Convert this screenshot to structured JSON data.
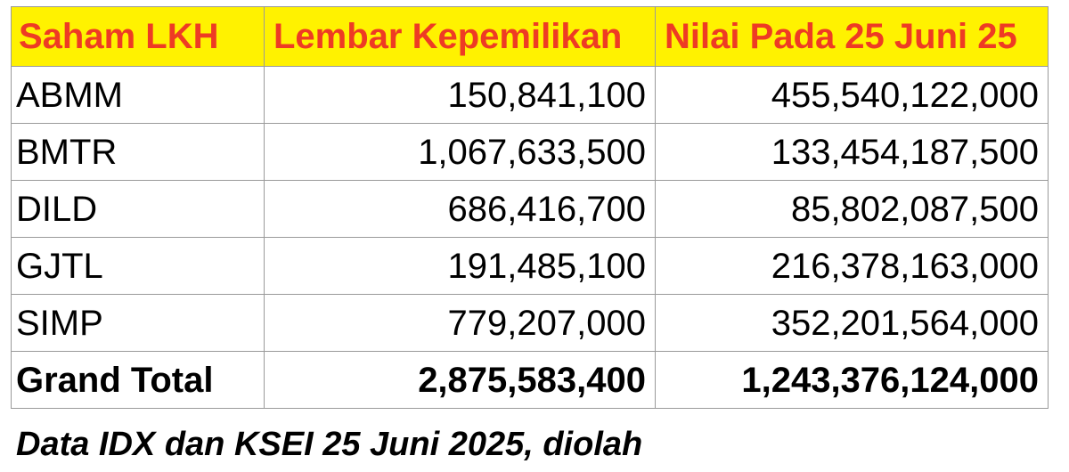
{
  "table": {
    "headers": {
      "saham": "Saham LKH",
      "lembar": "Lembar Kepemilikan",
      "nilai": "Nilai Pada 25 Juni 25"
    },
    "rows": [
      {
        "saham": "ABMM",
        "lembar": "150,841,100",
        "nilai": "455,540,122,000"
      },
      {
        "saham": "BMTR",
        "lembar": "1,067,633,500",
        "nilai": "133,454,187,500"
      },
      {
        "saham": "DILD",
        "lembar": "686,416,700",
        "nilai": "85,802,087,500"
      },
      {
        "saham": "GJTL",
        "lembar": "191,485,100",
        "nilai": "216,378,163,000"
      },
      {
        "saham": "SIMP",
        "lembar": "779,207,000",
        "nilai": "352,201,564,000"
      }
    ],
    "total": {
      "label": "Grand Total",
      "lembar": "2,875,583,400",
      "nilai": "1,243,376,124,000"
    }
  },
  "caption": "Data IDX dan KSEI 25 Juni 2025, diolah",
  "colors": {
    "header_background": "#fff200",
    "header_text": "#ee3b24",
    "border": "#9a9a9a"
  }
}
